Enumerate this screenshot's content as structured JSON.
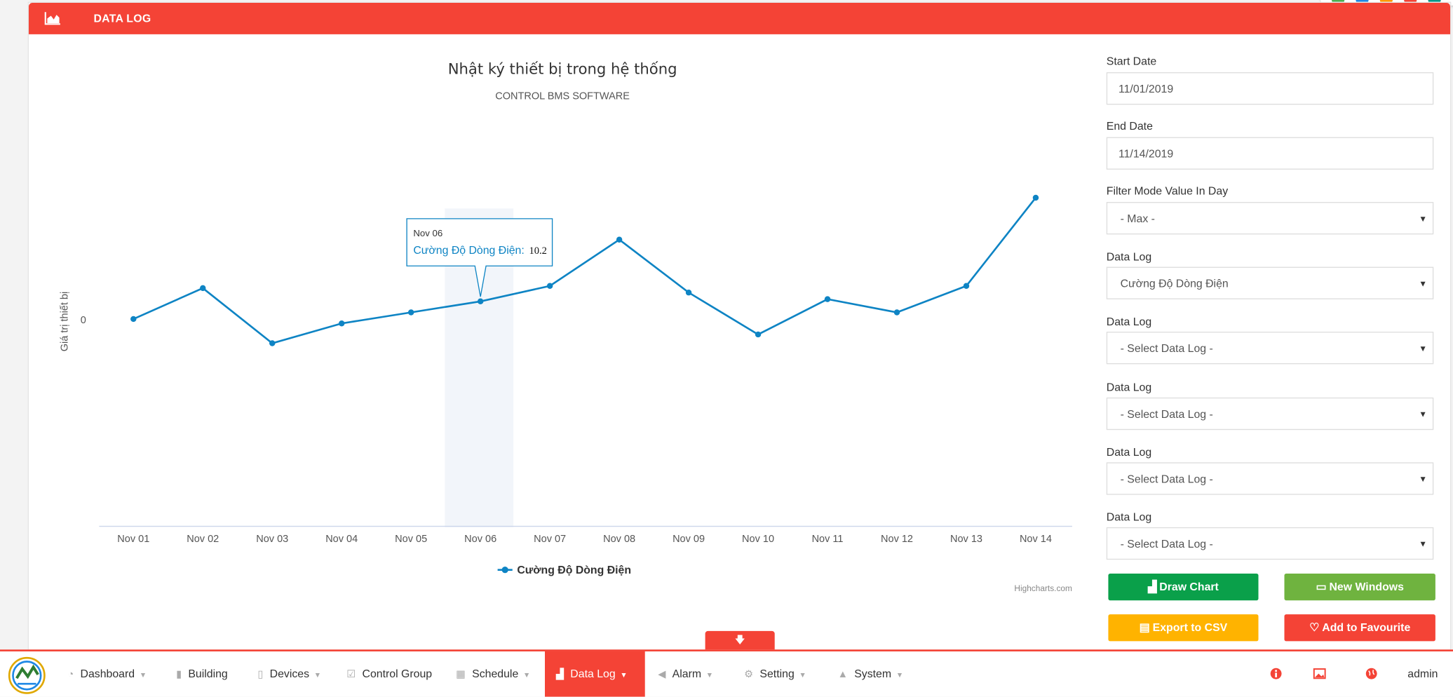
{
  "colors": {
    "accent": "#f44336",
    "series": "#0e84c4",
    "green": "#0aa04a",
    "lightgreen": "#6fb33f",
    "yellow": "#ffb300",
    "red": "#f44336"
  },
  "header": {
    "title": "DATA LOG",
    "icon": "area-chart-icon"
  },
  "chart_data": {
    "type": "line",
    "title": "Nhật ký thiết bị trong hệ thống",
    "subtitle": "CONTROL BMS SOFTWARE",
    "ylabel": "Giá trị thiết bị",
    "y_ticks": [
      "0"
    ],
    "categories": [
      "Nov 01",
      "Nov 02",
      "Nov 03",
      "Nov 04",
      "Nov 05",
      "Nov 06",
      "Nov 07",
      "Nov 08",
      "Nov 09",
      "Nov 10",
      "Nov 11",
      "Nov 12",
      "Nov 13",
      "Nov 14"
    ],
    "series": [
      {
        "name": "Cường Độ Dòng Điện",
        "values": [
          9.4,
          10.8,
          8.3,
          9.2,
          9.7,
          10.2,
          10.9,
          13.0,
          10.6,
          8.7,
          10.3,
          9.7,
          10.9,
          14.9
        ]
      }
    ],
    "tooltip": {
      "category": "Nov 06",
      "label": "Cường Độ Dòng Điện:",
      "value": "10.2",
      "index": 5
    },
    "credit": "Highcharts.com",
    "legend_position": "bottom-center"
  },
  "form": {
    "start_date": {
      "label": "Start Date",
      "value": "11/01/2019"
    },
    "end_date": {
      "label": "End Date",
      "value": "11/14/2019"
    },
    "filter_mode": {
      "label": "Filter Mode Value In Day",
      "value": "- Max -"
    },
    "data_logs": [
      {
        "label": "Data Log",
        "value": "Cường Độ Dòng Điện"
      },
      {
        "label": "Data Log",
        "value": "- Select Data Log -"
      },
      {
        "label": "Data Log",
        "value": "- Select Data Log -"
      },
      {
        "label": "Data Log",
        "value": "- Select Data Log -"
      },
      {
        "label": "Data Log",
        "value": "- Select Data Log -"
      }
    ],
    "buttons": {
      "draw_chart": "Draw Chart",
      "new_windows": "New Windows",
      "export_csv": "Export to CSV",
      "add_favourite": "Add to Favourite"
    }
  },
  "nav": {
    "items": [
      {
        "label": "Dashboard",
        "icon": "tachometer-icon",
        "dropdown": true
      },
      {
        "label": "Building",
        "icon": "building-icon",
        "dropdown": false
      },
      {
        "label": "Devices",
        "icon": "mobile-icon",
        "dropdown": true
      },
      {
        "label": "Control Group",
        "icon": "checkbox-icon",
        "dropdown": false
      },
      {
        "label": "Schedule",
        "icon": "calendar-icon",
        "dropdown": true
      },
      {
        "label": "Data Log",
        "icon": "area-chart-icon",
        "dropdown": true,
        "active": true
      },
      {
        "label": "Alarm",
        "icon": "bullhorn-icon",
        "dropdown": true
      },
      {
        "label": "Setting",
        "icon": "cogs-icon",
        "dropdown": true
      },
      {
        "label": "System",
        "icon": "warning-icon",
        "dropdown": true
      }
    ],
    "user": "admin"
  }
}
